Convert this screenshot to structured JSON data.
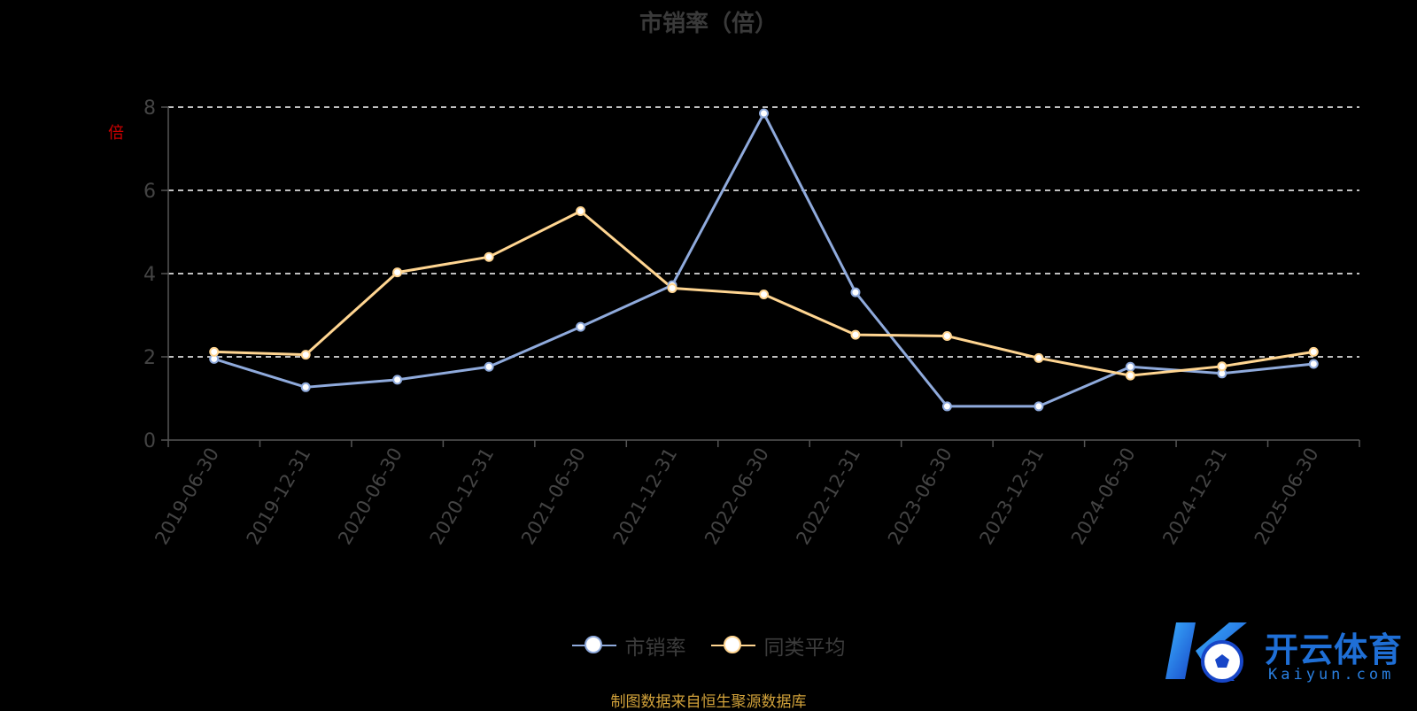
{
  "chart_data": {
    "type": "line",
    "title": "市销率（倍）",
    "ylabel": "倍",
    "categories": [
      "2019-06-30",
      "2019-12-31",
      "2020-06-30",
      "2020-12-31",
      "2021-06-30",
      "2021-12-31",
      "2022-06-30",
      "2022-12-31",
      "2023-06-30",
      "2023-12-31",
      "2024-06-30",
      "2024-12-31",
      "2025-06-30"
    ],
    "ylim": [
      0,
      8
    ],
    "yticks": [
      0,
      2,
      4,
      6,
      8
    ],
    "grid": true,
    "legend_position": "bottom",
    "series": [
      {
        "name": "市销率",
        "color": "#8faadc",
        "values": [
          1.95,
          1.27,
          1.45,
          1.76,
          2.72,
          3.72,
          7.85,
          3.55,
          0.81,
          0.81,
          1.76,
          1.6,
          1.83
        ]
      },
      {
        "name": "同类平均",
        "color": "#ffd591",
        "values": [
          2.12,
          2.05,
          4.03,
          4.4,
          5.5,
          3.65,
          3.5,
          2.53,
          2.5,
          1.97,
          1.55,
          1.77,
          2.12
        ]
      }
    ]
  },
  "source_note": "制图数据来自恒生聚源数据库",
  "watermark": {
    "brand": "开云体育",
    "domain": "Kaiyun.com",
    "icon": "soccer-ball-logo"
  }
}
